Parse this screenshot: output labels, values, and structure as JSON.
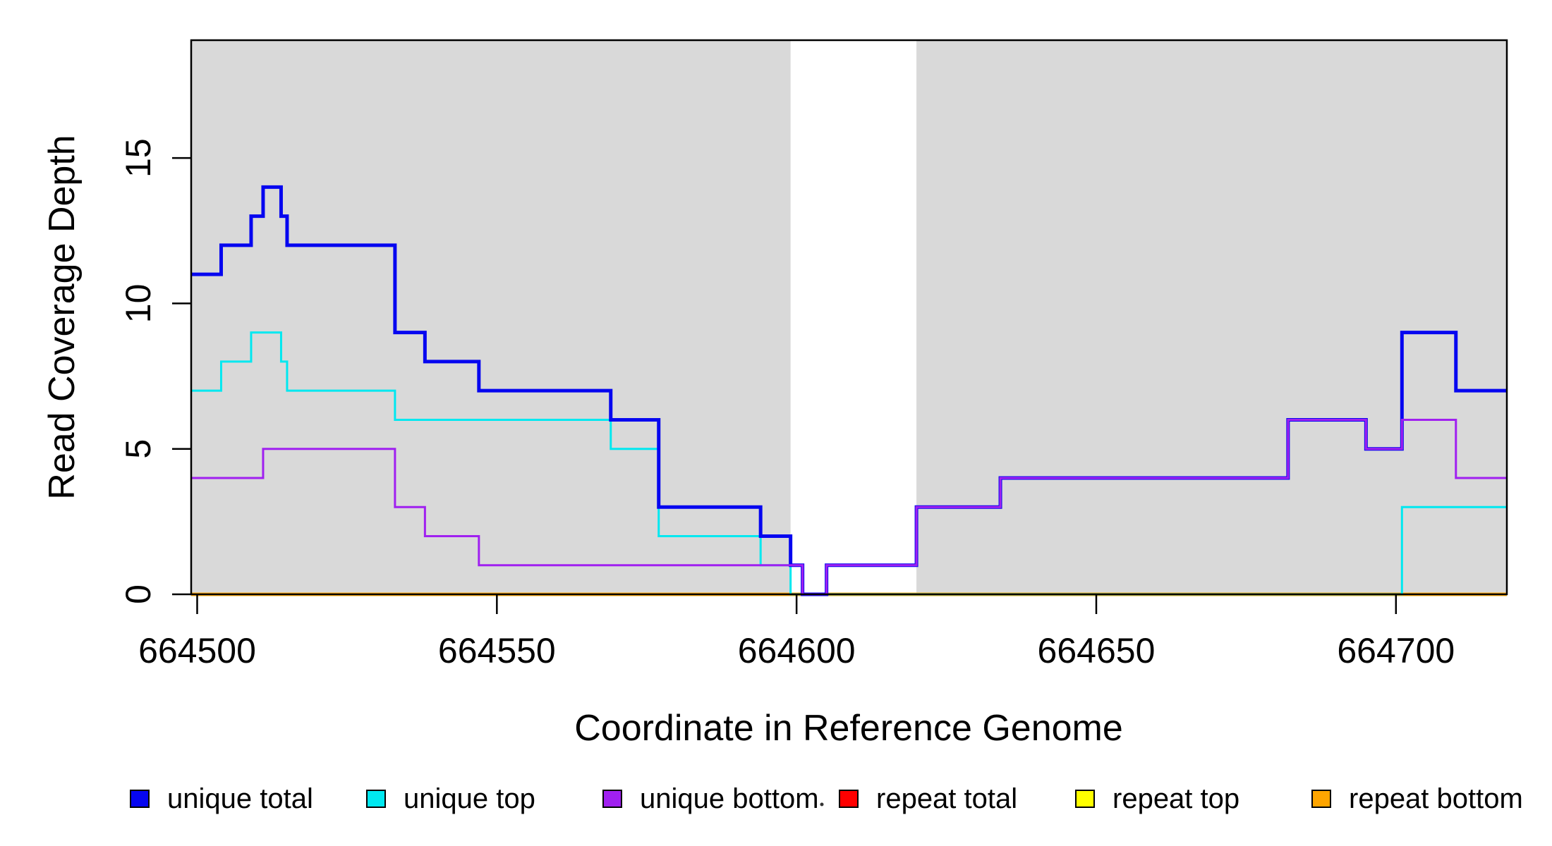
{
  "figure": {
    "xlabel": "Coordinate in Reference Genome",
    "ylabel": "Read Coverage Depth"
  },
  "chart_data": {
    "type": "line",
    "subtype": "step",
    "title": "",
    "xlabel": "Coordinate in Reference Genome",
    "ylabel": "Read Coverage Depth",
    "xlim": [
      664499,
      664718.5
    ],
    "ylim": [
      0,
      19.05
    ],
    "x_ticks": [
      664500,
      664550,
      664600,
      664650,
      664700
    ],
    "y_ticks": [
      0,
      5,
      10,
      15
    ],
    "grid": false,
    "plot_background": "#ffffff",
    "shade_color": "#d9d9d9",
    "shaded_regions": [
      [
        664499,
        664599
      ],
      [
        664620,
        664718.5
      ]
    ],
    "legend_position": "bottom",
    "series": [
      {
        "name": "repeat total",
        "color": "#ff0000",
        "width": 4.5,
        "steps": [
          [
            664499,
            0
          ]
        ]
      },
      {
        "name": "repeat top",
        "color": "#ffff00",
        "width": 4.5,
        "steps": [
          [
            664499,
            0
          ]
        ]
      },
      {
        "name": "repeat bottom",
        "color": "#ffa500",
        "width": 4.5,
        "steps": [
          [
            664499,
            0
          ]
        ]
      },
      {
        "name": "unique top",
        "color": "#00e8f0",
        "width": 3,
        "steps": [
          [
            664499,
            7
          ],
          [
            664504,
            8
          ],
          [
            664509,
            9
          ],
          [
            664514,
            8
          ],
          [
            664515,
            7
          ],
          [
            664533,
            6
          ],
          [
            664569,
            5
          ],
          [
            664577,
            2
          ],
          [
            664594,
            1
          ],
          [
            664599,
            0
          ],
          [
            664701,
            3
          ]
        ]
      },
      {
        "name": "unique total",
        "color": "#0606f0",
        "width": 5,
        "steps": [
          [
            664499,
            11
          ],
          [
            664504,
            12
          ],
          [
            664509,
            13
          ],
          [
            664511,
            14
          ],
          [
            664514,
            13
          ],
          [
            664515,
            12
          ],
          [
            664533,
            9
          ],
          [
            664538,
            8
          ],
          [
            664547,
            7
          ],
          [
            664569,
            6
          ],
          [
            664577,
            3
          ],
          [
            664594,
            2
          ],
          [
            664599,
            1
          ],
          [
            664601,
            0
          ],
          [
            664605,
            1
          ],
          [
            664620,
            3
          ],
          [
            664634,
            4
          ],
          [
            664682,
            6
          ],
          [
            664695,
            5
          ],
          [
            664701,
            9
          ],
          [
            664710,
            7
          ]
        ]
      },
      {
        "name": "unique bottom",
        "color": "#a020f0",
        "width": 3,
        "steps": [
          [
            664499,
            4
          ],
          [
            664511,
            5
          ],
          [
            664533,
            3
          ],
          [
            664538,
            2
          ],
          [
            664547,
            1
          ],
          [
            664601,
            0
          ],
          [
            664605,
            1
          ],
          [
            664620,
            3
          ],
          [
            664634,
            4
          ],
          [
            664682,
            6
          ],
          [
            664695,
            5
          ],
          [
            664701,
            6
          ],
          [
            664710,
            4
          ]
        ]
      }
    ],
    "legend": [
      {
        "label": "unique total",
        "color": "#0606f0"
      },
      {
        "label": "unique top",
        "color": "#00e8f0"
      },
      {
        "label": "unique bottom",
        "color": "#a020f0"
      },
      {
        "label": "repeat total",
        "color": "#ff0000"
      },
      {
        "label": "repeat top",
        "color": "#ffff00"
      },
      {
        "label": "repeat bottom",
        "color": "#ffa500"
      }
    ]
  }
}
